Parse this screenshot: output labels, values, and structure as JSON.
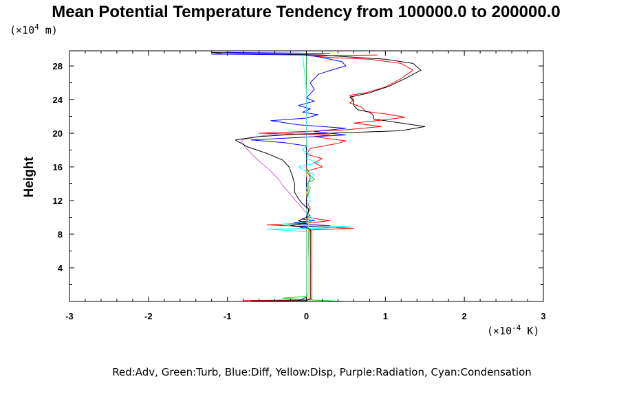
{
  "chart_data": {
    "type": "line",
    "title": "Mean Potential Temperature Tendency from 100000.0 to 200000.0",
    "xlabel": "",
    "ylabel": "Height",
    "x_unit_prefix": "(×10",
    "x_unit_exp": "-4",
    "x_unit_suffix": " K)",
    "y_unit_prefix": "(×10",
    "y_unit_exp": "4",
    "y_unit_suffix": " m)",
    "xlim": [
      -3,
      3
    ],
    "ylim": [
      0,
      29.8
    ],
    "x_ticks": [
      -3,
      -2,
      -1,
      0,
      1,
      2,
      3
    ],
    "x_tick_labels": [
      "-3",
      "-2",
      "-1",
      "0",
      "1",
      "2",
      "3"
    ],
    "y_ticks": [
      4,
      8,
      12,
      16,
      20,
      24,
      28
    ],
    "y_tick_labels": [
      "4",
      "8",
      "12",
      "16",
      "20",
      "24",
      "28"
    ],
    "legend_text": "Red:Adv, Green:Turb, Blue:Diff, Yellow:Disp, Purple:Radiation, Cyan:Condensation",
    "grid": false,
    "series": [
      {
        "key": "adv",
        "color": "#ff0000",
        "points": [
          [
            -0.8,
            0.1
          ],
          [
            0.0,
            0.2
          ],
          [
            0.07,
            0.3
          ],
          [
            0.07,
            0.6
          ],
          [
            0.07,
            1
          ],
          [
            0.07,
            2
          ],
          [
            0.07,
            3
          ],
          [
            0.07,
            4
          ],
          [
            0.07,
            5
          ],
          [
            0.07,
            6
          ],
          [
            0.07,
            7
          ],
          [
            0.07,
            8.2
          ],
          [
            0.05,
            8.5
          ],
          [
            0.6,
            8.7
          ],
          [
            0.0,
            8.9
          ],
          [
            -0.5,
            9.1
          ],
          [
            0.0,
            9.3
          ],
          [
            0.3,
            9.6
          ],
          [
            0.0,
            10.0
          ],
          [
            0.02,
            10.5
          ],
          [
            0.05,
            11
          ],
          [
            0.0,
            12
          ],
          [
            0.02,
            13
          ],
          [
            0.02,
            14
          ],
          [
            0.05,
            14.8
          ],
          [
            0.0,
            15.5
          ],
          [
            0.2,
            16.0
          ],
          [
            0.1,
            16.5
          ],
          [
            0.2,
            17.0
          ],
          [
            0.0,
            17.5
          ],
          [
            0.05,
            18.2
          ],
          [
            0.4,
            18.8
          ],
          [
            0.5,
            19.1
          ],
          [
            0.25,
            19.4
          ],
          [
            0.1,
            19.6
          ],
          [
            0.3,
            19.8
          ],
          [
            -0.6,
            20.0
          ],
          [
            0.5,
            20.4
          ],
          [
            0.95,
            20.8
          ],
          [
            0.6,
            21.2
          ],
          [
            1.0,
            21.6
          ],
          [
            1.25,
            21.9
          ],
          [
            1.0,
            22.3
          ],
          [
            0.75,
            22.6
          ],
          [
            0.7,
            23.1
          ],
          [
            0.55,
            23.6
          ],
          [
            0.6,
            24.0
          ],
          [
            0.55,
            24.5
          ],
          [
            0.75,
            24.8
          ],
          [
            1.0,
            25.5
          ],
          [
            1.2,
            26.5
          ],
          [
            1.35,
            27.5
          ],
          [
            1.2,
            28.3
          ],
          [
            0.8,
            28.8
          ],
          [
            0.3,
            29.0
          ],
          [
            0.05,
            29.2
          ],
          [
            0.9,
            29.3
          ]
        ]
      },
      {
        "key": "turb",
        "color": "#00cc00",
        "points": [
          [
            0.5,
            0.0
          ],
          [
            0.0,
            0.2
          ],
          [
            -0.3,
            0.4
          ],
          [
            0.0,
            0.6
          ],
          [
            0.02,
            1
          ],
          [
            0.02,
            4
          ],
          [
            0.03,
            8.3
          ],
          [
            0.05,
            8.6
          ],
          [
            0.0,
            9.0
          ],
          [
            0.05,
            9.5
          ],
          [
            0.0,
            10.0
          ],
          [
            0.0,
            12.0
          ],
          [
            0.05,
            13.5
          ],
          [
            0.0,
            14.0
          ],
          [
            0.1,
            14.5
          ],
          [
            0.05,
            15.0
          ],
          [
            0.0,
            16.0
          ],
          [
            0.0,
            18.0
          ],
          [
            0.0,
            20.0
          ],
          [
            0.0,
            25.0
          ],
          [
            0.0,
            29.6
          ]
        ]
      },
      {
        "key": "diff",
        "color": "#0000ff",
        "points": [
          [
            -0.1,
            0.1
          ],
          [
            -0.05,
            0.3
          ],
          [
            0.0,
            0.5
          ],
          [
            0.0,
            1
          ],
          [
            0.0,
            4
          ],
          [
            0.0,
            8.2
          ],
          [
            0.0,
            8.6
          ],
          [
            -0.1,
            8.9
          ],
          [
            0.3,
            9.0
          ],
          [
            -0.05,
            9.2
          ],
          [
            -0.15,
            9.4
          ],
          [
            0.1,
            9.6
          ],
          [
            -0.05,
            9.8
          ],
          [
            0.05,
            10.2
          ],
          [
            0.0,
            10.6
          ],
          [
            0.0,
            12
          ],
          [
            0.0,
            16
          ],
          [
            0.0,
            18.5
          ],
          [
            -0.3,
            18.9
          ],
          [
            -0.7,
            19.2
          ],
          [
            -0.1,
            19.5
          ],
          [
            0.5,
            19.8
          ],
          [
            0.1,
            20.2
          ],
          [
            0.5,
            20.6
          ],
          [
            -0.1,
            21.0
          ],
          [
            -0.45,
            21.5
          ],
          [
            0.0,
            21.8
          ],
          [
            0.15,
            22.2
          ],
          [
            -0.05,
            22.5
          ],
          [
            0.05,
            22.9
          ],
          [
            -0.1,
            23.3
          ],
          [
            0.1,
            23.8
          ],
          [
            0.0,
            24.2
          ],
          [
            0.05,
            24.7
          ],
          [
            0.1,
            25.2
          ],
          [
            0.05,
            26.0
          ],
          [
            0.15,
            27.0
          ],
          [
            0.35,
            27.6
          ],
          [
            0.5,
            28.0
          ],
          [
            0.45,
            28.5
          ],
          [
            0.2,
            29.0
          ],
          [
            0.0,
            29.3
          ],
          [
            -1.2,
            29.4
          ],
          [
            -1.0,
            29.6
          ],
          [
            0.3,
            29.5
          ]
        ]
      },
      {
        "key": "disp",
        "color": "#ffcc00",
        "points": [
          [
            0.02,
            0.3
          ],
          [
            0.02,
            4
          ],
          [
            0.02,
            8
          ],
          [
            0.03,
            10
          ],
          [
            0.0,
            13
          ],
          [
            0.03,
            14
          ],
          [
            0.0,
            15
          ],
          [
            0.02,
            18
          ],
          [
            0.0,
            20
          ]
        ]
      },
      {
        "key": "radiation",
        "color": "#cc66cc",
        "points": [
          [
            0.0,
            0.3
          ],
          [
            0.0,
            8.2
          ],
          [
            0.0,
            9.0
          ],
          [
            0.0,
            10.5
          ],
          [
            -0.3,
            13.8
          ],
          [
            -0.35,
            14.5
          ],
          [
            -0.45,
            15.5
          ],
          [
            -0.6,
            16.7
          ],
          [
            -0.7,
            17.6
          ],
          [
            -0.78,
            18.4
          ],
          [
            -0.82,
            19.2
          ],
          [
            -0.5,
            19.8
          ],
          [
            -0.2,
            20.0
          ],
          [
            0.0,
            20.1
          ]
        ]
      },
      {
        "key": "condensation",
        "color": "#00ffff",
        "points": [
          [
            0.0,
            0.1
          ],
          [
            0.0,
            0.5
          ],
          [
            0.0,
            4
          ],
          [
            0.0,
            8.3
          ],
          [
            -0.5,
            8.6
          ],
          [
            0.2,
            8.7
          ],
          [
            0.55,
            8.9
          ],
          [
            0.0,
            9.0
          ],
          [
            -0.3,
            9.2
          ],
          [
            0.0,
            9.4
          ],
          [
            0.1,
            9.8
          ],
          [
            0.0,
            10.3
          ],
          [
            0.0,
            11
          ],
          [
            0.05,
            12
          ],
          [
            0.0,
            13.5
          ],
          [
            0.05,
            14.5
          ],
          [
            0.1,
            15.0
          ],
          [
            0.0,
            15.5
          ],
          [
            -0.1,
            16.0
          ],
          [
            0.15,
            16.5
          ],
          [
            0.0,
            17.0
          ],
          [
            0.05,
            17.5
          ],
          [
            -0.05,
            18.0
          ],
          [
            0.0,
            18.5
          ],
          [
            0.0,
            19.5
          ],
          [
            0.0,
            25
          ],
          [
            -0.05,
            29.6
          ]
        ]
      },
      {
        "key": "total",
        "color": "#000000",
        "points": [
          [
            -0.7,
            0.05
          ],
          [
            0.0,
            0.1
          ],
          [
            0.05,
            0.3
          ],
          [
            0.05,
            4
          ],
          [
            0.05,
            8.2
          ],
          [
            0.05,
            8.5
          ],
          [
            0.0,
            8.8
          ],
          [
            -0.2,
            9.0
          ],
          [
            0.0,
            9.3
          ],
          [
            -0.1,
            9.6
          ],
          [
            0.0,
            10.0
          ],
          [
            0.02,
            10.5
          ],
          [
            0.03,
            11.0
          ],
          [
            -0.05,
            11.6
          ],
          [
            -0.1,
            12.2
          ],
          [
            -0.15,
            13.0
          ],
          [
            -0.15,
            14.0
          ],
          [
            -0.18,
            15.0
          ],
          [
            -0.22,
            16.0
          ],
          [
            -0.3,
            16.8
          ],
          [
            -0.5,
            17.6
          ],
          [
            -0.75,
            18.4
          ],
          [
            -0.9,
            19.2
          ],
          [
            -0.6,
            19.6
          ],
          [
            -0.1,
            19.9
          ],
          [
            0.3,
            20.0
          ],
          [
            1.2,
            20.3
          ],
          [
            1.5,
            20.8
          ],
          [
            1.2,
            21.2
          ],
          [
            0.85,
            21.7
          ],
          [
            0.85,
            22.1
          ],
          [
            0.8,
            22.5
          ],
          [
            0.65,
            22.8
          ],
          [
            0.6,
            23.3
          ],
          [
            0.6,
            23.8
          ],
          [
            0.55,
            24.3
          ],
          [
            0.8,
            24.8
          ],
          [
            1.05,
            25.6
          ],
          [
            1.25,
            26.5
          ],
          [
            1.45,
            27.5
          ],
          [
            1.35,
            28.3
          ],
          [
            1.0,
            28.8
          ],
          [
            0.5,
            29.1
          ],
          [
            0.2,
            29.3
          ],
          [
            -1.2,
            29.6
          ]
        ]
      }
    ]
  }
}
